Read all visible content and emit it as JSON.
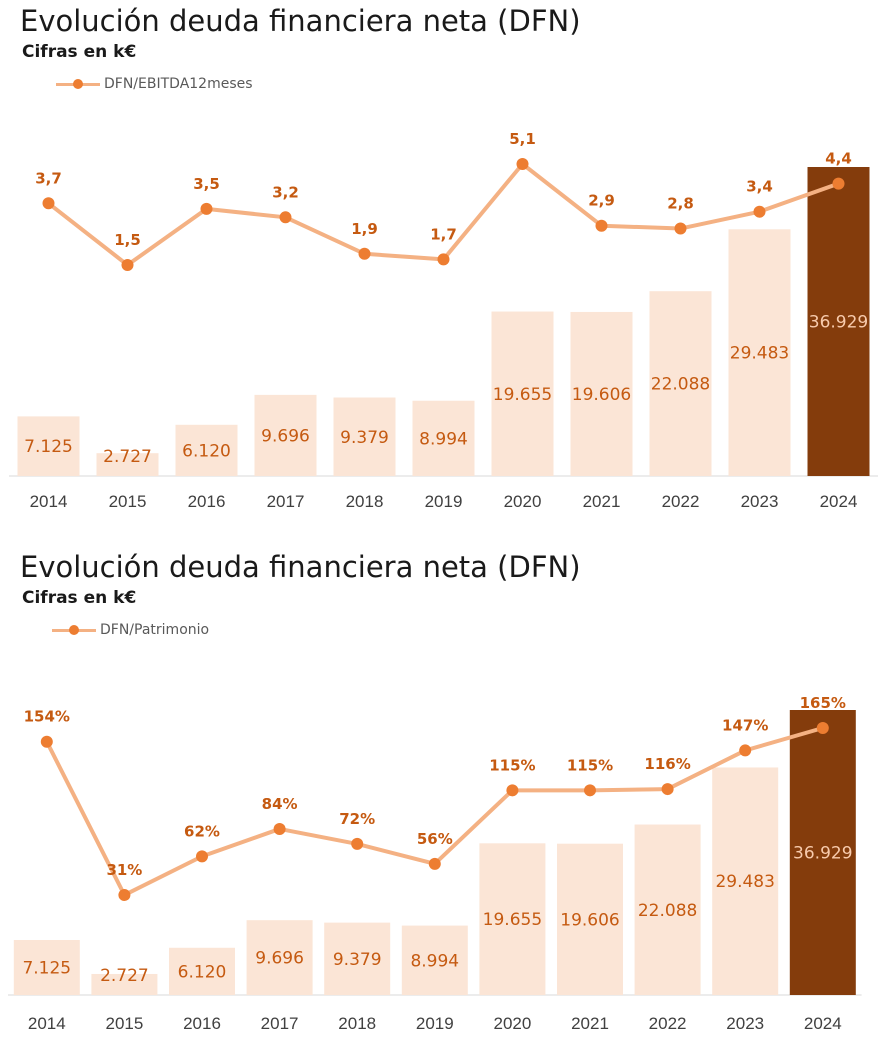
{
  "colors": {
    "bar": "#fbe5d6",
    "bar_highlight": "#843c0c",
    "line": "#f4b183",
    "marker": "#ed7d31",
    "label": "#c55a11",
    "axis": "#d9d9d9"
  },
  "charts": [
    {
      "title": "Evolución deuda financiera neta (DFN)",
      "subtitle": "Cifras en k€",
      "legend": "DFN/EBITDA12meses"
    },
    {
      "title": "Evolución deuda financiera neta (DFN)",
      "subtitle": "Cifras en k€",
      "legend": "DFN/Patrimonio"
    }
  ],
  "chart_data": [
    {
      "type": "bar",
      "title": "Evolución deuda financiera neta (DFN)",
      "subtitle": "Cifras en k€",
      "categories": [
        "2014",
        "2015",
        "2016",
        "2017",
        "2018",
        "2019",
        "2020",
        "2021",
        "2022",
        "2023",
        "2024"
      ],
      "series": [
        {
          "type": "bar",
          "values": [
            7125,
            2727,
            6120,
            9696,
            9379,
            8994,
            19655,
            19606,
            22088,
            29483,
            36929
          ],
          "labels": [
            "7.125",
            "2.727",
            "6.120",
            "9.696",
            "9.379",
            "8.994",
            "19.655",
            "19.606",
            "22.088",
            "29.483",
            "36.929"
          ],
          "highlight_index": 10
        },
        {
          "type": "line",
          "name": "DFN/EBITDA12meses",
          "values": [
            3.7,
            1.5,
            3.5,
            3.2,
            1.9,
            1.7,
            5.1,
            2.9,
            2.8,
            3.4,
            4.4
          ],
          "labels": [
            "3,7",
            "1,5",
            "3,5",
            "3,2",
            "1,9",
            "1,7",
            "5,1",
            "2,9",
            "2,8",
            "3,4",
            "4,4"
          ]
        }
      ],
      "legend_position": "top-left",
      "grid": false
    },
    {
      "type": "bar",
      "title": "Evolución deuda financiera neta (DFN)",
      "subtitle": "Cifras en k€",
      "categories": [
        "2014",
        "2015",
        "2016",
        "2017",
        "2018",
        "2019",
        "2020",
        "2021",
        "2022",
        "2023",
        "2024"
      ],
      "series": [
        {
          "type": "bar",
          "values": [
            7125,
            2727,
            6120,
            9696,
            9379,
            8994,
            19655,
            19606,
            22088,
            29483,
            36929
          ],
          "labels": [
            "7.125",
            "2.727",
            "6.120",
            "9.696",
            "9.379",
            "8.994",
            "19.655",
            "19.606",
            "22.088",
            "29.483",
            "36.929"
          ],
          "highlight_index": 10
        },
        {
          "type": "line",
          "name": "DFN/Patrimonio",
          "values": [
            154,
            31,
            62,
            84,
            72,
            56,
            115,
            115,
            116,
            147,
            165
          ],
          "labels": [
            "154%",
            "31%",
            "62%",
            "84%",
            "72%",
            "56%",
            "115%",
            "115%",
            "116%",
            "147%",
            "165%"
          ]
        }
      ],
      "legend_position": "top-left",
      "grid": false
    }
  ]
}
